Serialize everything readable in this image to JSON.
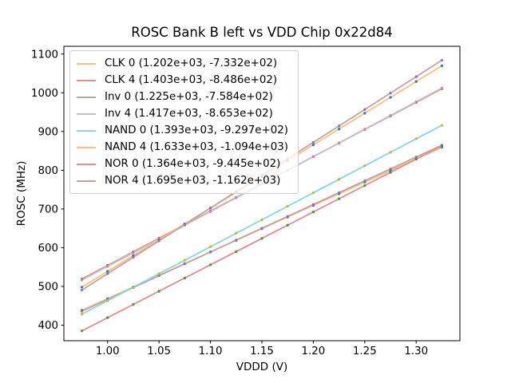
{
  "figure": {
    "background_color": "#ffffff",
    "spine_color": "#000000",
    "legend_border_color": "#cccccc"
  },
  "chart_data": {
    "type": "scatter",
    "title": "ROSC Bank B left vs VDD Chip 0x22d84",
    "xlabel": "VDDD (V)",
    "ylabel": "ROSC (MHz)",
    "xlim": [
      0.9575,
      1.3425
    ],
    "ylim": [
      360,
      1120
    ],
    "x_tick_values": [
      1.0,
      1.05,
      1.1,
      1.15,
      1.2,
      1.25,
      1.3
    ],
    "x_tick_labels": [
      "1.00",
      "1.05",
      "1.10",
      "1.15",
      "1.20",
      "1.25",
      "1.30"
    ],
    "y_tick_values": [
      400,
      500,
      600,
      700,
      800,
      900,
      1000,
      1100
    ],
    "y_tick_labels": [
      "400",
      "500",
      "600",
      "700",
      "800",
      "900",
      "1000",
      "1100"
    ],
    "grid": false,
    "legend_position": "upper left",
    "x_points": [
      0.975,
      1.0,
      1.025,
      1.05,
      1.075,
      1.1,
      1.125,
      1.15,
      1.175,
      1.2,
      1.225,
      1.25,
      1.275,
      1.3,
      1.325
    ],
    "series": [
      {
        "name": "CLK 0",
        "legend_label": "CLK 0 (1.202e+03, -7.332e+02)",
        "fit_slope": 1202.0,
        "fit_intercept": -733.2,
        "line_color": "#ffbd82",
        "dot_color": "#1f77b4"
      },
      {
        "name": "CLK 4",
        "legend_label": "CLK 4 (1.403e+03, -8.486e+02)",
        "fit_slope": 1403.0,
        "fit_intercept": -848.6,
        "line_color": "#e78b8b",
        "dot_color": "#2ca02c"
      },
      {
        "name": "Inv 0",
        "legend_label": "Inv 0 (1.225e+03, -7.584e+02)",
        "fit_slope": 1225.0,
        "fit_intercept": -758.4,
        "line_color": "#c1a49c",
        "dot_color": "#9467bd"
      },
      {
        "name": "Inv 4",
        "legend_label": "Inv 4 (1.417e+03, -8.653e+02)",
        "fit_slope": 1417.0,
        "fit_intercept": -865.3,
        "line_color": "#c2c2c2",
        "dot_color": "#e377c2"
      },
      {
        "name": "NAND 0",
        "legend_label": "NAND 0 (1.393e+03, -9.297e+02)",
        "fit_slope": 1393.0,
        "fit_intercept": -929.7,
        "line_color": "#83d8e1",
        "dot_color": "#bcbd22"
      },
      {
        "name": "NAND 4",
        "legend_label": "NAND 4 (1.633e+03, -1.094e+03)",
        "fit_slope": 1633.0,
        "fit_intercept": -1094.0,
        "line_color": "#ffbd82",
        "dot_color": "#1f77b4"
      },
      {
        "name": "NOR 0",
        "legend_label": "NOR 0 (1.364e+03, -9.445e+02)",
        "fit_slope": 1364.0,
        "fit_intercept": -944.5,
        "line_color": "#e78b8b",
        "dot_color": "#2ca02c"
      },
      {
        "name": "NOR 4",
        "legend_label": "NOR 4 (1.695e+03, -1.162e+03)",
        "fit_slope": 1695.0,
        "fit_intercept": -1162.0,
        "line_color": "#c1a49c",
        "dot_color": "#9467bd"
      }
    ]
  }
}
